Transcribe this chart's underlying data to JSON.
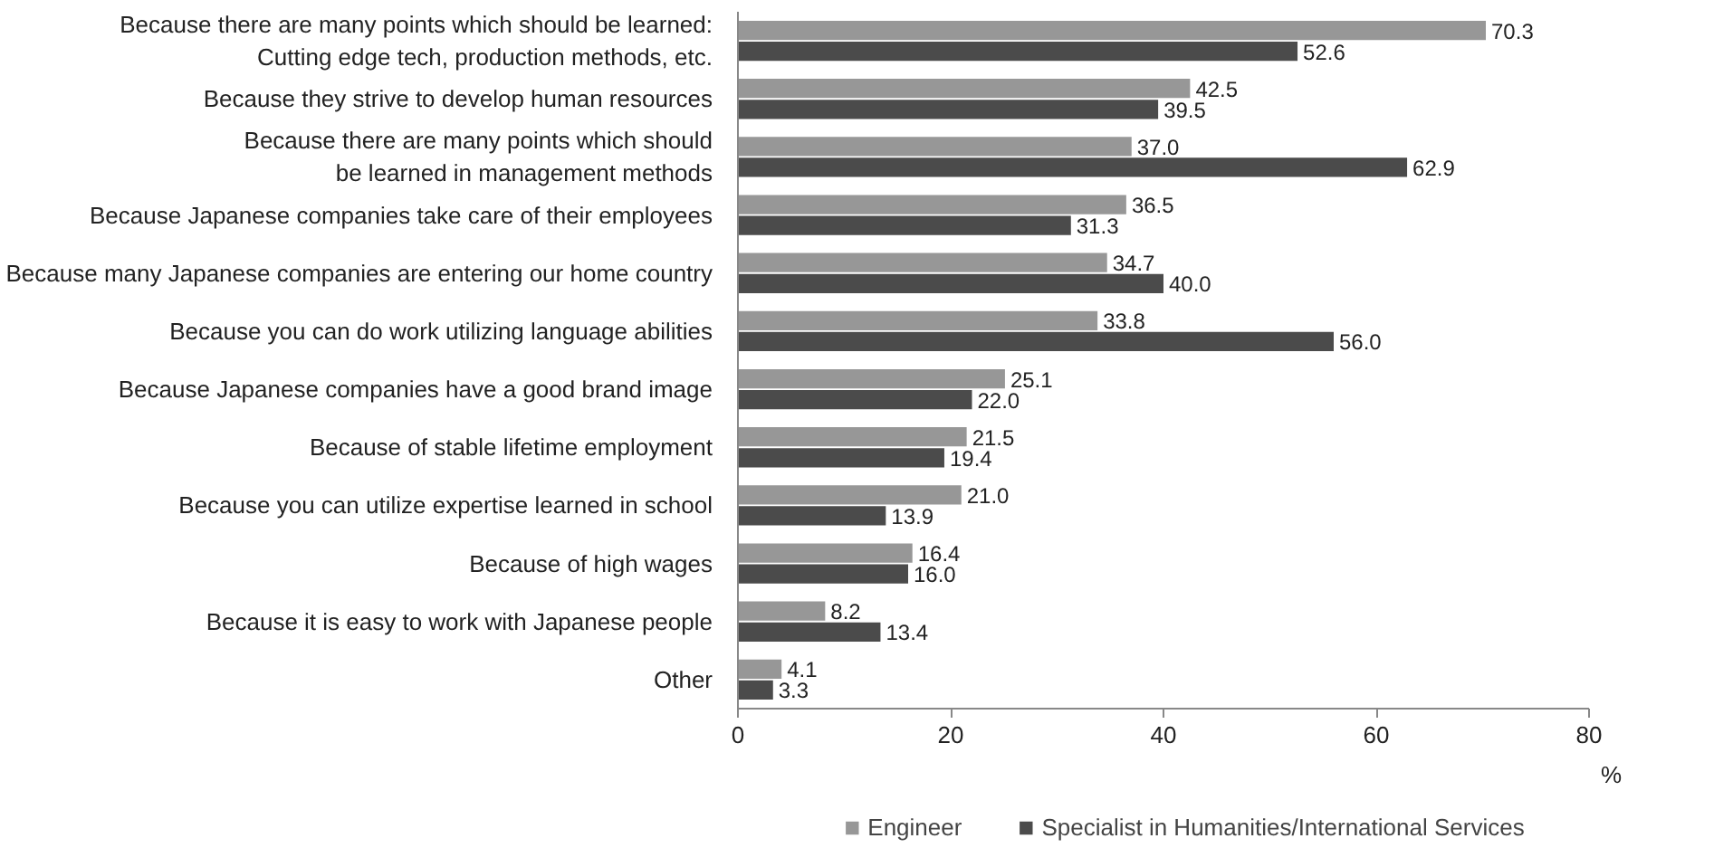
{
  "chart_data": {
    "type": "bar",
    "orientation": "horizontal",
    "xlabel": "%",
    "categories": [
      "Because there are many points which should be learned:\nCutting edge tech, production methods, etc.",
      "Because they strive to develop human resources",
      "Because there are many points which should\nbe learned in management methods",
      "Because Japanese companies take care of their employees",
      "Because many Japanese companies are entering our home country",
      "Because you can do work utilizing language abilities",
      "Because Japanese companies have a good brand image",
      "Because of stable lifetime employment",
      "Because you can utilize expertise learned in school",
      "Because of high wages",
      "Because it is easy to work with Japanese people",
      "Other"
    ],
    "series": [
      {
        "name": "Engineer",
        "color": "#979797",
        "values": [
          70.3,
          42.5,
          37.0,
          36.5,
          34.7,
          33.8,
          25.1,
          21.5,
          21.0,
          16.4,
          8.2,
          4.1
        ],
        "value_labels": [
          "70.3",
          "42.5",
          "37.0",
          "36.5",
          "34.7",
          "33.8",
          "25.1",
          "21.5",
          "21.0",
          "16.4",
          "8.2",
          "4.1"
        ]
      },
      {
        "name": "Specialist in Humanities/International Services",
        "color": "#4b4b4b",
        "values": [
          52.6,
          39.5,
          62.9,
          31.3,
          40.0,
          56.0,
          22.0,
          19.4,
          13.9,
          16.0,
          13.4,
          3.3
        ],
        "value_labels": [
          "52.6",
          "39.5",
          "62.9",
          "31.3",
          "40.0",
          "56.0",
          "22.0",
          "19.4",
          "13.9",
          "16.0",
          "13.4",
          "3.3"
        ]
      }
    ],
    "xlim": [
      0,
      80
    ],
    "xticks": [
      0,
      20,
      40,
      60,
      80
    ],
    "legend": "bottom",
    "grid": false
  }
}
